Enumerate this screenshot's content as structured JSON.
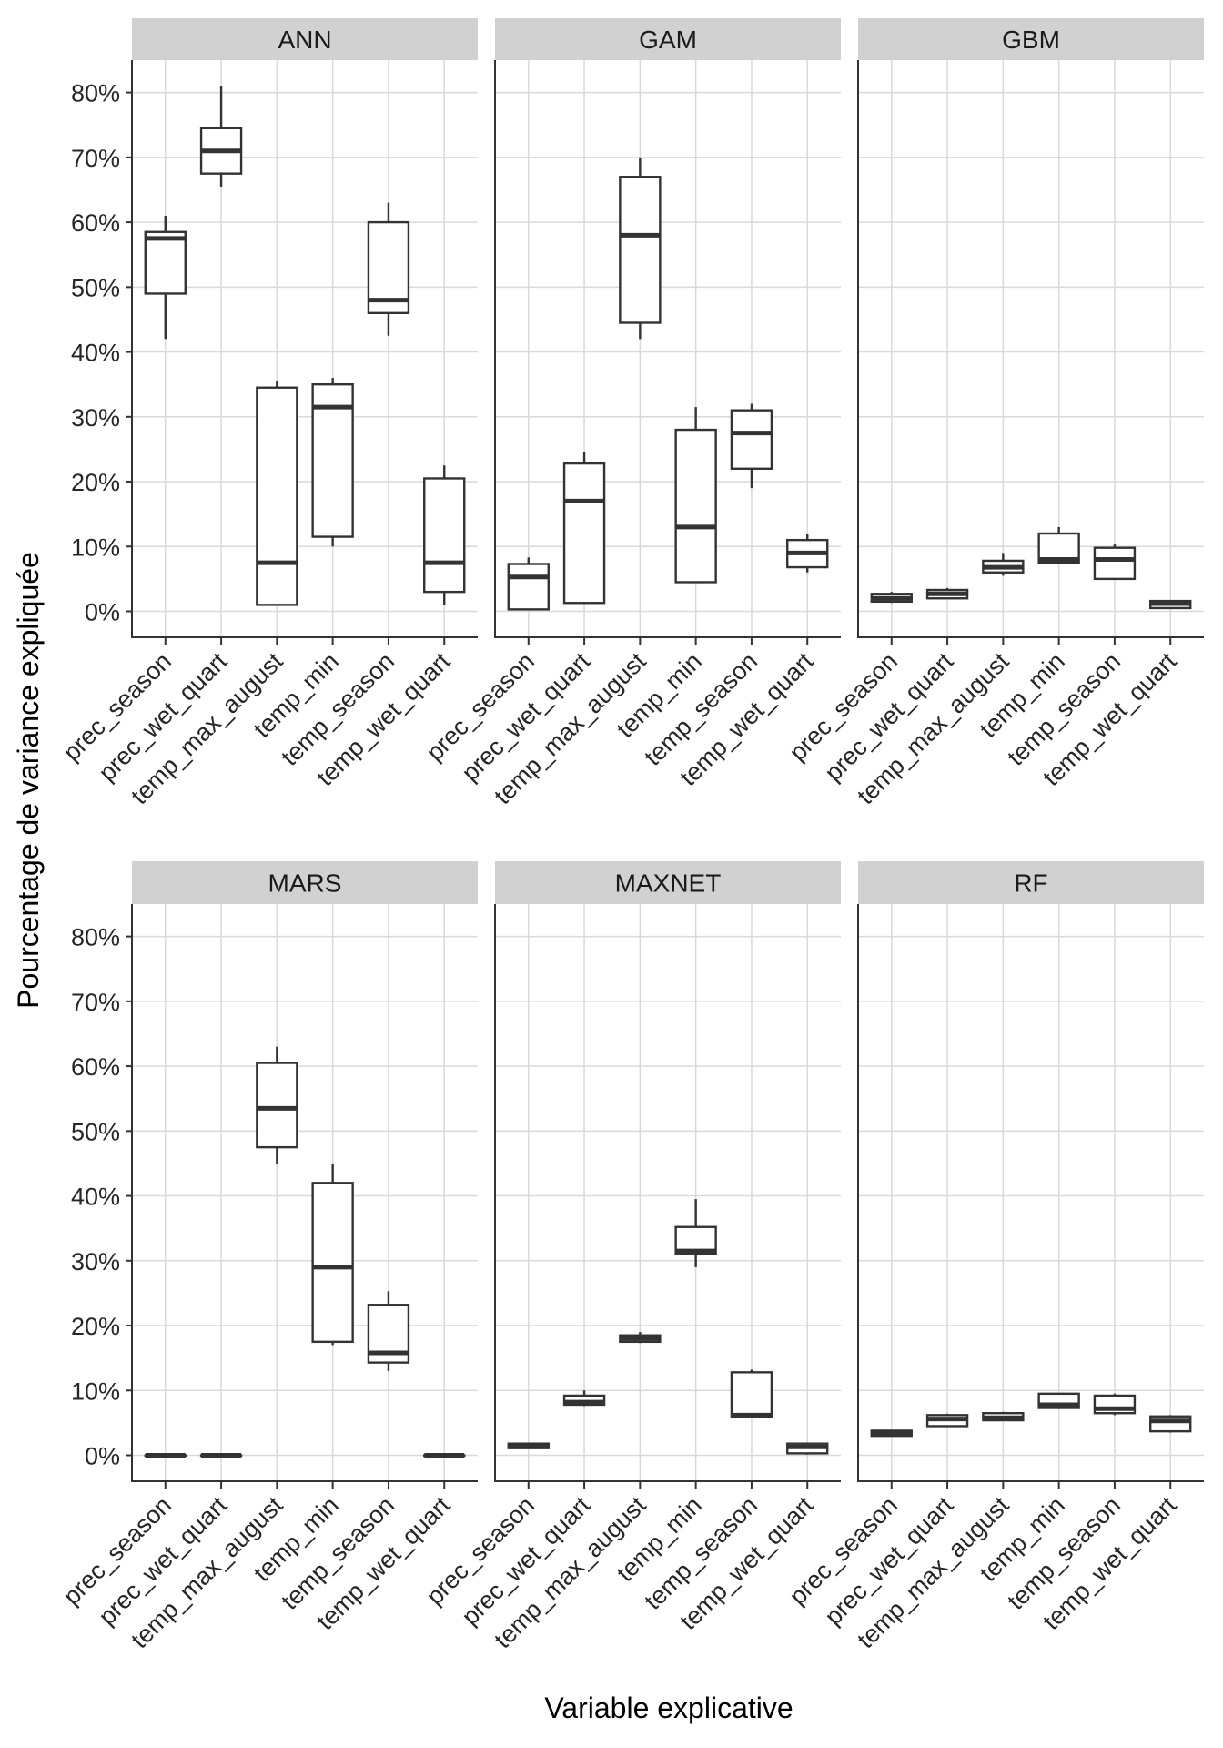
{
  "chart_data": {
    "type": "boxplot",
    "xlabel": "Variable explicative",
    "ylabel": "Pourcentage de variance expliquée",
    "ylim": [
      -4,
      85
    ],
    "y_ticks": [
      0,
      10,
      20,
      30,
      40,
      50,
      60,
      70,
      80
    ],
    "y_tick_labels": [
      "0%",
      "10%",
      "20%",
      "30%",
      "40%",
      "50%",
      "60%",
      "70%",
      "80%"
    ],
    "categories": [
      "prec_season",
      "prec_wet_quart",
      "temp_max_august",
      "temp_min",
      "temp_season",
      "temp_wet_quart"
    ],
    "grid": true,
    "panels": [
      {
        "name": "ANN",
        "boxes": [
          {
            "min": 42,
            "q1": 49,
            "median": 57.5,
            "q3": 58.5,
            "max": 61
          },
          {
            "min": 65.5,
            "q1": 67.5,
            "median": 71,
            "q3": 74.5,
            "max": 81
          },
          {
            "min": 1,
            "q1": 1,
            "median": 7.5,
            "q3": 34.5,
            "max": 35.5
          },
          {
            "min": 10,
            "q1": 11.5,
            "median": 31.5,
            "q3": 35,
            "max": 36
          },
          {
            "min": 42.5,
            "q1": 46,
            "median": 48,
            "q3": 60,
            "max": 63
          },
          {
            "min": 1,
            "q1": 3,
            "median": 7.5,
            "q3": 20.5,
            "max": 22.5
          }
        ]
      },
      {
        "name": "GAM",
        "boxes": [
          {
            "min": 0.2,
            "q1": 0.3,
            "median": 5.3,
            "q3": 7.3,
            "max": 8.3
          },
          {
            "min": 1.3,
            "q1": 1.3,
            "median": 17,
            "q3": 22.8,
            "max": 24.5
          },
          {
            "min": 42,
            "q1": 44.5,
            "median": 58,
            "q3": 67,
            "max": 70
          },
          {
            "min": 4.5,
            "q1": 4.5,
            "median": 13,
            "q3": 28,
            "max": 31.5
          },
          {
            "min": 19,
            "q1": 22,
            "median": 27.5,
            "q3": 31,
            "max": 32
          },
          {
            "min": 6,
            "q1": 6.8,
            "median": 9,
            "q3": 11,
            "max": 12
          }
        ]
      },
      {
        "name": "GBM",
        "boxes": [
          {
            "min": 1.3,
            "q1": 1.5,
            "median": 2,
            "q3": 2.7,
            "max": 3
          },
          {
            "min": 2,
            "q1": 2,
            "median": 2.7,
            "q3": 3.3,
            "max": 3.6
          },
          {
            "min": 5.5,
            "q1": 6,
            "median": 6.8,
            "q3": 7.8,
            "max": 9
          },
          {
            "min": 7.3,
            "q1": 7.5,
            "median": 8,
            "q3": 12,
            "max": 13
          },
          {
            "min": 5,
            "q1": 5,
            "median": 8,
            "q3": 9.8,
            "max": 10.3
          },
          {
            "min": 0.5,
            "q1": 0.5,
            "median": 1.2,
            "q3": 1.6,
            "max": 1.7
          }
        ]
      },
      {
        "name": "MARS",
        "boxes": [
          {
            "min": 0,
            "q1": 0,
            "median": 0,
            "q3": 0,
            "max": 0
          },
          {
            "min": 0,
            "q1": 0,
            "median": 0,
            "q3": 0,
            "max": 0
          },
          {
            "min": 45,
            "q1": 47.5,
            "median": 53.5,
            "q3": 60.5,
            "max": 63
          },
          {
            "min": 17,
            "q1": 17.5,
            "median": 29,
            "q3": 42,
            "max": 45
          },
          {
            "min": 13,
            "q1": 14.3,
            "median": 15.8,
            "q3": 23.2,
            "max": 25.3
          },
          {
            "min": 0,
            "q1": 0,
            "median": 0,
            "q3": 0,
            "max": 0
          }
        ]
      },
      {
        "name": "MAXNET",
        "boxes": [
          {
            "min": 1,
            "q1": 1.1,
            "median": 1.5,
            "q3": 1.8,
            "max": 1.8
          },
          {
            "min": 7.6,
            "q1": 7.8,
            "median": 8.2,
            "q3": 9.2,
            "max": 10
          },
          {
            "min": 17.3,
            "q1": 17.5,
            "median": 18,
            "q3": 18.5,
            "max": 19
          },
          {
            "min": 29,
            "q1": 31,
            "median": 31.5,
            "q3": 35.2,
            "max": 39.5
          },
          {
            "min": 6,
            "q1": 6,
            "median": 6.2,
            "q3": 12.8,
            "max": 13.2
          },
          {
            "min": 0.1,
            "q1": 0.3,
            "median": 1.3,
            "q3": 1.8,
            "max": 1.8
          }
        ]
      },
      {
        "name": "RF",
        "boxes": [
          {
            "min": 2.9,
            "q1": 3,
            "median": 3.5,
            "q3": 3.8,
            "max": 3.9
          },
          {
            "min": 4.4,
            "q1": 4.5,
            "median": 5.6,
            "q3": 6.2,
            "max": 6.4
          },
          {
            "min": 5.3,
            "q1": 5.4,
            "median": 5.8,
            "q3": 6.5,
            "max": 6.7
          },
          {
            "min": 7.2,
            "q1": 7.3,
            "median": 7.8,
            "q3": 9.5,
            "max": 9.6
          },
          {
            "min": 6.2,
            "q1": 6.5,
            "median": 7.2,
            "q3": 9.2,
            "max": 9.5
          },
          {
            "min": 3.5,
            "q1": 3.7,
            "median": 5.3,
            "q3": 6,
            "max": 6.2
          }
        ]
      }
    ]
  }
}
